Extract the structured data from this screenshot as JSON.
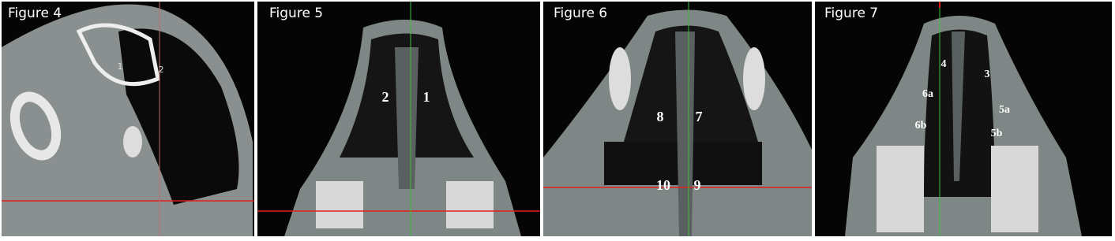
{
  "panels": [
    {
      "title": "Figure 4",
      "labels": [
        "1",
        "2"
      ]
    },
    {
      "title": "Figure 5",
      "labels": [
        "2",
        "1"
      ]
    },
    {
      "title": "Figure 6",
      "labels": [
        "8",
        "7",
        "10",
        "9"
      ]
    },
    {
      "title": "Figure 7",
      "labels": [
        "4",
        "3",
        "6a",
        "5a",
        "6b",
        "5b"
      ]
    }
  ]
}
